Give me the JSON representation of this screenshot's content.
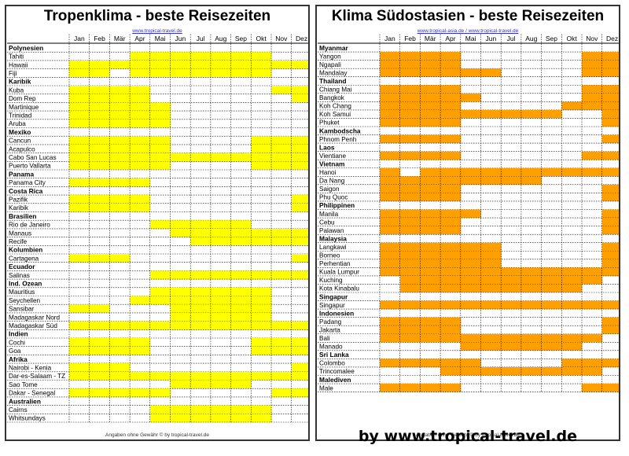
{
  "charts": [
    {
      "title": "Tropenklima - beste Reisezeiten",
      "link": "www.tropical-travel.de",
      "footer": "Angaben ohne Gewähr © by tropical-travel.de",
      "highlight_color": "#ffff00"
    },
    {
      "title": "Klima Südostasien - beste Reisezeiten",
      "link": "www.tropical-asia.de / www.tropical-travel.de",
      "footer": "Angaben ohne Gewähr © by tropical-travel.de",
      "highlight_color": "#ff9f00"
    }
  ],
  "credit": "by www.tropical-travel.de",
  "chart_data": [
    {
      "type": "heatmap",
      "title": "Tropenklima - beste Reisezeiten",
      "months": [
        "Jan",
        "Feb",
        "Mär",
        "Apr",
        "Mai",
        "Jun",
        "Jul",
        "Aug",
        "Sep",
        "Okt",
        "Nov",
        "Dez"
      ],
      "rows": [
        {
          "label": "Polynesien",
          "header": true
        },
        {
          "label": "Tahiti",
          "m": [
            0,
            0,
            0,
            1,
            1,
            1,
            1,
            1,
            1,
            1,
            0,
            0
          ]
        },
        {
          "label": "Hawaii",
          "m": [
            1,
            1,
            1,
            1,
            1,
            1,
            1,
            1,
            1,
            1,
            1,
            1
          ]
        },
        {
          "label": "Fiji",
          "m": [
            1,
            1,
            0,
            1,
            1,
            1,
            1,
            1,
            1,
            1,
            0,
            0
          ]
        },
        {
          "label": "Karibik",
          "header": true
        },
        {
          "label": "Kuba",
          "m": [
            1,
            1,
            1,
            1,
            0,
            0,
            0,
            0,
            0,
            0,
            1,
            1
          ]
        },
        {
          "label": "Dom Rep",
          "m": [
            1,
            1,
            1,
            1,
            0,
            0,
            0,
            0,
            0,
            0,
            0,
            1
          ]
        },
        {
          "label": "Martinique",
          "m": [
            1,
            1,
            1,
            1,
            1,
            0,
            0,
            0,
            0,
            0,
            0,
            0
          ]
        },
        {
          "label": "Trinidad",
          "m": [
            1,
            1,
            1,
            1,
            1,
            0,
            0,
            0,
            0,
            0,
            0,
            0
          ]
        },
        {
          "label": "Aruba",
          "m": [
            1,
            1,
            1,
            1,
            1,
            0,
            0,
            0,
            0,
            0,
            0,
            0
          ]
        },
        {
          "label": "Mexiko",
          "header": true
        },
        {
          "label": "Cancun",
          "m": [
            1,
            1,
            1,
            1,
            1,
            0,
            0,
            0,
            0,
            1,
            1,
            1
          ]
        },
        {
          "label": "Acapulco",
          "m": [
            1,
            1,
            1,
            1,
            1,
            0,
            0,
            0,
            0,
            1,
            1,
            1
          ]
        },
        {
          "label": "Cabo San Lucas",
          "m": [
            1,
            1,
            1,
            1,
            1,
            1,
            1,
            1,
            1,
            1,
            1,
            1
          ]
        },
        {
          "label": "Puerto Vallarta",
          "m": [
            1,
            1,
            1,
            1,
            1,
            0,
            0,
            0,
            0,
            1,
            1,
            1
          ]
        },
        {
          "label": "Panama",
          "header": true
        },
        {
          "label": "Panama City",
          "m": [
            1,
            1,
            1,
            1,
            0,
            0,
            0,
            0,
            0,
            0,
            0,
            0
          ]
        },
        {
          "label": "Costa Rica",
          "header": true
        },
        {
          "label": "Pazifik",
          "m": [
            1,
            1,
            1,
            1,
            0,
            0,
            0,
            0,
            0,
            0,
            0,
            1
          ]
        },
        {
          "label": "Karibik",
          "m": [
            1,
            1,
            1,
            1,
            0,
            0,
            0,
            0,
            0,
            0,
            0,
            1
          ]
        },
        {
          "label": "Brasilien",
          "header": true
        },
        {
          "label": "Rio de Janeiro",
          "m": [
            0,
            0,
            0,
            0,
            1,
            1,
            1,
            1,
            1,
            0,
            0,
            0
          ]
        },
        {
          "label": "Manaus",
          "m": [
            0,
            0,
            0,
            0,
            0,
            1,
            1,
            1,
            1,
            1,
            1,
            1
          ]
        },
        {
          "label": "Recife",
          "m": [
            0,
            0,
            0,
            0,
            0,
            0,
            1,
            1,
            1,
            1,
            1,
            1
          ]
        },
        {
          "label": "Kolumbien",
          "header": true
        },
        {
          "label": "Cartagena",
          "m": [
            1,
            1,
            1,
            0,
            0,
            0,
            0,
            0,
            0,
            0,
            0,
            1
          ]
        },
        {
          "label": "Ecuador",
          "header": true
        },
        {
          "label": "Salinas",
          "m": [
            0,
            0,
            0,
            0,
            1,
            1,
            1,
            1,
            1,
            1,
            1,
            1
          ]
        },
        {
          "label": "Ind. Ozean",
          "header": true
        },
        {
          "label": "Mauritius",
          "m": [
            0,
            0,
            0,
            0,
            1,
            1,
            1,
            1,
            1,
            1,
            0,
            0
          ]
        },
        {
          "label": "Seychellen",
          "m": [
            0,
            0,
            0,
            1,
            1,
            1,
            1,
            1,
            1,
            1,
            0,
            0
          ]
        },
        {
          "label": "Sansibar",
          "m": [
            1,
            1,
            0,
            0,
            0,
            1,
            1,
            1,
            1,
            1,
            0,
            0
          ]
        },
        {
          "label": "Madagaskar Nord",
          "m": [
            0,
            0,
            0,
            0,
            0,
            1,
            1,
            1,
            1,
            1,
            0,
            0
          ]
        },
        {
          "label": "Madagaskar Süd",
          "m": [
            1,
            1,
            1,
            1,
            1,
            1,
            1,
            1,
            1,
            1,
            1,
            1
          ]
        },
        {
          "label": "Indien",
          "header": true
        },
        {
          "label": "Cochi",
          "m": [
            1,
            1,
            1,
            1,
            0,
            0,
            0,
            0,
            0,
            1,
            1,
            1
          ]
        },
        {
          "label": "Goa",
          "m": [
            1,
            1,
            1,
            1,
            0,
            0,
            0,
            0,
            0,
            1,
            1,
            1
          ]
        },
        {
          "label": "Afrika",
          "header": true
        },
        {
          "label": "Nairobi - Kenia",
          "m": [
            1,
            1,
            1,
            0,
            0,
            0,
            0,
            0,
            0,
            0,
            0,
            1
          ]
        },
        {
          "label": "Dar-es-Salaam - TZ",
          "m": [
            1,
            1,
            1,
            1,
            1,
            1,
            1,
            1,
            1,
            1,
            1,
            1
          ]
        },
        {
          "label": "Sao Tome",
          "m": [
            0,
            0,
            0,
            0,
            0,
            1,
            1,
            1,
            1,
            0,
            0,
            0
          ]
        },
        {
          "label": "Dakar - Senegal",
          "m": [
            1,
            1,
            1,
            1,
            1,
            0,
            0,
            0,
            0,
            0,
            1,
            1
          ]
        },
        {
          "label": "Australien",
          "header": true
        },
        {
          "label": "Cairns",
          "m": [
            0,
            0,
            0,
            0,
            1,
            1,
            1,
            1,
            1,
            1,
            0,
            0
          ]
        },
        {
          "label": "Whitsundays",
          "m": [
            0,
            0,
            0,
            0,
            1,
            1,
            1,
            1,
            1,
            1,
            0,
            0
          ]
        }
      ]
    },
    {
      "type": "heatmap",
      "title": "Klima Südostasien - beste Reisezeiten",
      "months": [
        "Jan",
        "Feb",
        "Mär",
        "Apr",
        "Mai",
        "Jun",
        "Jul",
        "Aug",
        "Sep",
        "Okt",
        "Nov",
        "Dez"
      ],
      "rows": [
        {
          "label": "Myanmar",
          "header": true
        },
        {
          "label": "Yangon",
          "m": [
            1,
            1,
            1,
            1,
            0,
            0,
            0,
            0,
            0,
            0,
            1,
            1
          ]
        },
        {
          "label": "Ngapali",
          "m": [
            1,
            1,
            1,
            1,
            0,
            0,
            0,
            0,
            0,
            0,
            1,
            1
          ]
        },
        {
          "label": "Mandalay",
          "m": [
            1,
            1,
            1,
            1,
            1,
            1,
            0,
            0,
            0,
            0,
            1,
            1
          ]
        },
        {
          "label": "Thailand",
          "header": true
        },
        {
          "label": "Chiang Mai",
          "m": [
            1,
            1,
            1,
            1,
            0,
            0,
            0,
            0,
            0,
            0,
            1,
            1
          ]
        },
        {
          "label": "Bangkok",
          "m": [
            1,
            1,
            1,
            1,
            1,
            0,
            0,
            0,
            0,
            0,
            1,
            1
          ]
        },
        {
          "label": "Koh Chang",
          "m": [
            1,
            1,
            1,
            1,
            0,
            0,
            0,
            0,
            0,
            1,
            1,
            1
          ]
        },
        {
          "label": "Koh Samui",
          "m": [
            1,
            1,
            1,
            1,
            1,
            1,
            1,
            1,
            1,
            0,
            0,
            1
          ]
        },
        {
          "label": "Phuket",
          "m": [
            1,
            1,
            1,
            1,
            0,
            0,
            0,
            0,
            0,
            0,
            0,
            1
          ]
        },
        {
          "label": "Kambodscha",
          "header": true
        },
        {
          "label": "Phnom Penh",
          "m": [
            1,
            1,
            1,
            1,
            0,
            0,
            0,
            0,
            0,
            0,
            0,
            1
          ]
        },
        {
          "label": "Laos",
          "header": true
        },
        {
          "label": "Vientiane",
          "m": [
            1,
            1,
            1,
            1,
            0,
            0,
            0,
            0,
            0,
            0,
            1,
            1
          ]
        },
        {
          "label": "Vietnam",
          "header": true
        },
        {
          "label": "Hanoi",
          "m": [
            1,
            0,
            1,
            1,
            1,
            1,
            1,
            1,
            1,
            1,
            1,
            1
          ]
        },
        {
          "label": "Da Nang",
          "m": [
            1,
            1,
            1,
            1,
            1,
            1,
            1,
            1,
            0,
            0,
            0,
            0
          ]
        },
        {
          "label": "Saigon",
          "m": [
            1,
            1,
            1,
            1,
            0,
            0,
            0,
            0,
            0,
            0,
            0,
            1
          ]
        },
        {
          "label": "Phu Quoc",
          "m": [
            1,
            1,
            1,
            1,
            0,
            0,
            0,
            0,
            0,
            0,
            0,
            1
          ]
        },
        {
          "label": "Philippinen",
          "header": true
        },
        {
          "label": "Manila",
          "m": [
            1,
            1,
            1,
            1,
            1,
            0,
            0,
            0,
            0,
            0,
            0,
            1
          ]
        },
        {
          "label": "Cebu",
          "m": [
            1,
            1,
            1,
            1,
            0,
            0,
            0,
            0,
            0,
            0,
            0,
            1
          ]
        },
        {
          "label": "Palawan",
          "m": [
            1,
            1,
            1,
            1,
            0,
            0,
            0,
            0,
            0,
            0,
            0,
            1
          ]
        },
        {
          "label": "Malaysia",
          "header": true
        },
        {
          "label": "Langkawi",
          "m": [
            1,
            1,
            1,
            1,
            1,
            1,
            0,
            0,
            0,
            0,
            0,
            1
          ]
        },
        {
          "label": "Borneo",
          "m": [
            1,
            1,
            1,
            1,
            1,
            1,
            0,
            0,
            0,
            0,
            0,
            1
          ]
        },
        {
          "label": "Perhentian",
          "m": [
            1,
            1,
            1,
            1,
            1,
            1,
            0,
            0,
            0,
            0,
            0,
            1
          ]
        },
        {
          "label": "Kuala Lumpur",
          "m": [
            1,
            1,
            1,
            1,
            1,
            1,
            1,
            1,
            1,
            1,
            1,
            1
          ]
        },
        {
          "label": "Kuching",
          "m": [
            0,
            1,
            1,
            1,
            1,
            1,
            1,
            1,
            1,
            1,
            1,
            0
          ]
        },
        {
          "label": "Kota Kinabalu",
          "m": [
            0,
            1,
            1,
            1,
            1,
            1,
            1,
            1,
            1,
            1,
            0,
            0
          ]
        },
        {
          "label": "Singapur",
          "header": true
        },
        {
          "label": "Singapur",
          "m": [
            1,
            1,
            1,
            1,
            1,
            1,
            1,
            1,
            1,
            1,
            1,
            1
          ]
        },
        {
          "label": "Indonesien",
          "header": true
        },
        {
          "label": "Padang",
          "m": [
            1,
            1,
            1,
            1,
            0,
            0,
            0,
            0,
            0,
            0,
            0,
            1
          ]
        },
        {
          "label": "Jakarta",
          "m": [
            1,
            1,
            1,
            1,
            0,
            0,
            0,
            0,
            0,
            0,
            0,
            1
          ]
        },
        {
          "label": "Bali",
          "m": [
            1,
            1,
            1,
            1,
            1,
            1,
            1,
            1,
            1,
            1,
            1,
            0
          ]
        },
        {
          "label": "Manado",
          "m": [
            0,
            0,
            0,
            0,
            1,
            1,
            1,
            1,
            1,
            1,
            0,
            0
          ]
        },
        {
          "label": "Sri Lanka",
          "header": true
        },
        {
          "label": "Colombo",
          "m": [
            1,
            1,
            1,
            1,
            1,
            0,
            0,
            0,
            0,
            1,
            1,
            1
          ]
        },
        {
          "label": "Trincomalee",
          "m": [
            0,
            0,
            0,
            1,
            1,
            1,
            1,
            1,
            1,
            1,
            1,
            0
          ]
        },
        {
          "label": "Malediven",
          "header": true
        },
        {
          "label": "Male",
          "m": [
            1,
            1,
            1,
            1,
            0,
            0,
            0,
            0,
            0,
            0,
            1,
            1
          ]
        }
      ]
    }
  ]
}
